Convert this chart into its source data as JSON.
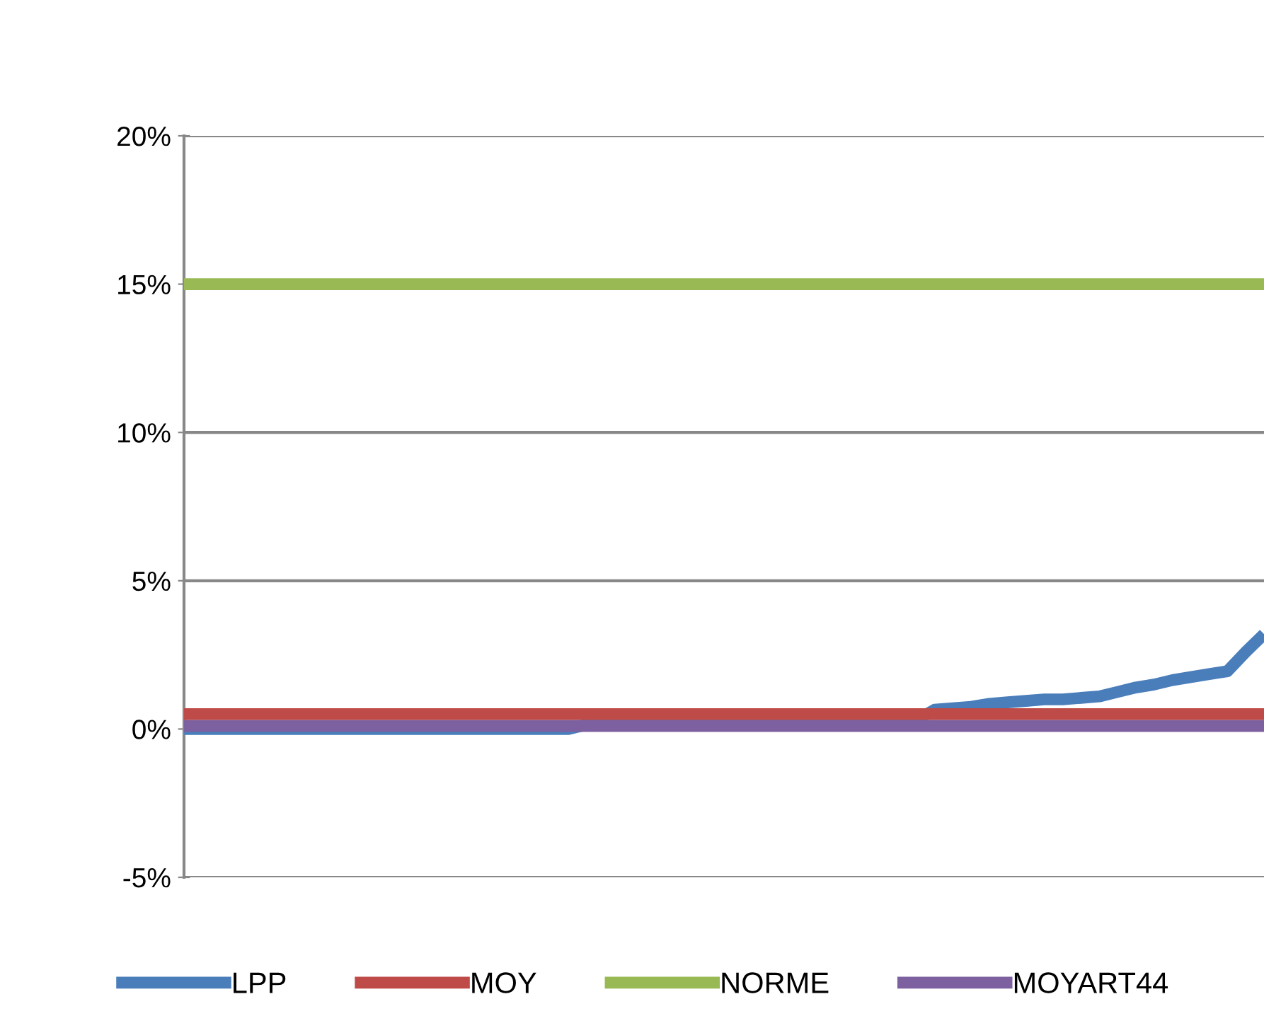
{
  "chart_data": {
    "type": "line",
    "categories": [
      null,
      null,
      null,
      null,
      null,
      null,
      null,
      null,
      null,
      null,
      null,
      null,
      null,
      null,
      null,
      null,
      null,
      null,
      null,
      null,
      null,
      null,
      null,
      null,
      null,
      null,
      null,
      null,
      null,
      null,
      null,
      null,
      null,
      null,
      null,
      null,
      null,
      null,
      null,
      null,
      null,
      null,
      null,
      null,
      null,
      null,
      null,
      null,
      null,
      null,
      null,
      null,
      null,
      null,
      null,
      null,
      null,
      null,
      null,
      null
    ],
    "series": [
      {
        "name": "LPP",
        "color": "#4a7ebb",
        "values": [
          0,
          0,
          0,
          0,
          0,
          0,
          0,
          0,
          0,
          0,
          0,
          0,
          0,
          0,
          0,
          0,
          0,
          0,
          0,
          0,
          0,
          0,
          0.15,
          0.2,
          0.2,
          0.2,
          0.2,
          0.2,
          0.2,
          0.2,
          0.2,
          0.2,
          0.2,
          0.2,
          0.2,
          0.2,
          0.2,
          0.2,
          0.2,
          0.2,
          0.3,
          0.65,
          0.7,
          0.75,
          0.85,
          0.9,
          0.95,
          1.0,
          1.0,
          1.05,
          1.1,
          1.25,
          1.4,
          1.5,
          1.65,
          1.75,
          1.85,
          1.95,
          2.6,
          3.2
        ]
      },
      {
        "name": "MOY",
        "color": "#be4b48",
        "values": [
          0.5,
          0.5,
          0.5,
          0.5,
          0.5,
          0.5,
          0.5,
          0.5,
          0.5,
          0.5,
          0.5,
          0.5,
          0.5,
          0.5,
          0.5,
          0.5,
          0.5,
          0.5,
          0.5,
          0.5,
          0.5,
          0.5,
          0.5,
          0.5,
          0.5,
          0.5,
          0.5,
          0.5,
          0.5,
          0.5,
          0.5,
          0.5,
          0.5,
          0.5,
          0.5,
          0.5,
          0.5,
          0.5,
          0.5,
          0.5,
          0.5,
          0.5,
          0.5,
          0.5,
          0.5,
          0.5,
          0.5,
          0.5,
          0.5,
          0.5,
          0.5,
          0.5,
          0.5,
          0.5,
          0.5,
          0.5,
          0.5,
          0.5,
          0.5,
          0.5
        ]
      },
      {
        "name": "NORME",
        "color": "#98b954",
        "values": [
          15,
          15,
          15,
          15,
          15,
          15,
          15,
          15,
          15,
          15,
          15,
          15,
          15,
          15,
          15,
          15,
          15,
          15,
          15,
          15,
          15,
          15,
          15,
          15,
          15,
          15,
          15,
          15,
          15,
          15,
          15,
          15,
          15,
          15,
          15,
          15,
          15,
          15,
          15,
          15,
          15,
          15,
          15,
          15,
          15,
          15,
          15,
          15,
          15,
          15,
          15,
          15,
          15,
          15,
          15,
          15,
          15,
          15,
          15,
          15
        ]
      },
      {
        "name": "MOYART44",
        "color": "#7d60a0",
        "values": [
          0.1,
          0.1,
          0.1,
          0.1,
          0.1,
          0.1,
          0.1,
          0.1,
          0.1,
          0.1,
          0.1,
          0.1,
          0.1,
          0.1,
          0.1,
          0.1,
          0.1,
          0.1,
          0.1,
          0.1,
          0.1,
          0.1,
          0.1,
          0.1,
          0.1,
          0.1,
          0.1,
          0.1,
          0.1,
          0.1,
          0.1,
          0.1,
          0.1,
          0.1,
          0.1,
          0.1,
          0.1,
          0.1,
          0.1,
          0.1,
          0.1,
          0.1,
          0.1,
          0.1,
          0.1,
          0.1,
          0.1,
          0.1,
          0.1,
          0.1,
          0.1,
          0.1,
          0.1,
          0.1,
          0.1,
          0.1,
          0.1,
          0.1,
          0.1,
          0.1
        ]
      }
    ],
    "ylim": [
      -5,
      20
    ],
    "yticks": [
      {
        "value": -5,
        "label": "-5%"
      },
      {
        "value": 0,
        "label": "0%"
      },
      {
        "value": 5,
        "label": "5%"
      },
      {
        "value": 10,
        "label": "10%"
      },
      {
        "value": 15,
        "label": "15%"
      },
      {
        "value": 20,
        "label": "20%"
      }
    ],
    "grid": "y",
    "legend": "bottom",
    "marker": "none",
    "line_style": "solid",
    "tick_labels": "y"
  }
}
